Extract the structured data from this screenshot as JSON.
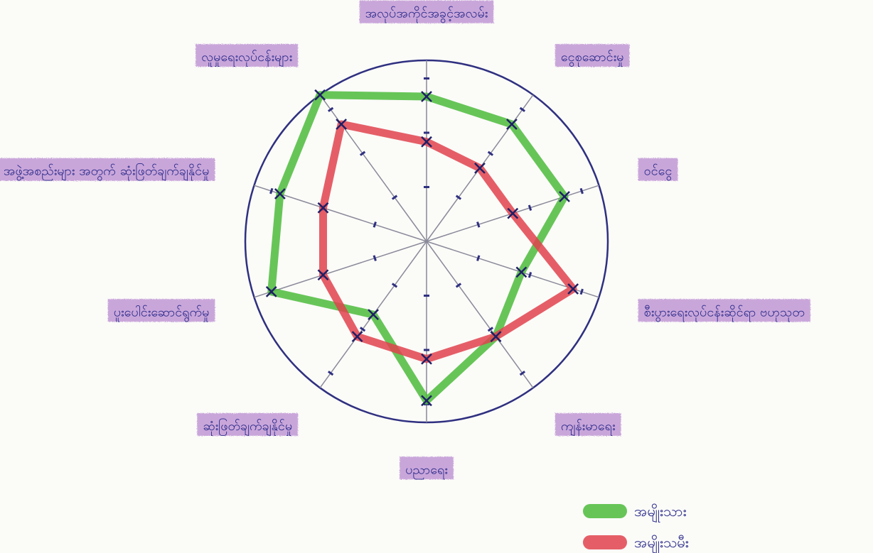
{
  "chart_data": {
    "type": "radar",
    "title": "",
    "axes": [
      "အလုပ်အကိုင်အခွင့်အလမ်း",
      "ငွေစုဆောင်းမှု",
      "ဝင်ငွေ",
      "စီးပွားရေးလုပ်ငန်းဆိုင်ရာ ဗဟုသုတ",
      "ကျန်းမာရေး",
      "ပညာရေး",
      "ဆုံးဖြတ်ချက်ချနိုင်မှု",
      "ပူးပေါင်းဆောင်ရွက်မှု",
      "အဖွဲ့အစည်းများ အတွက် ဆုံးဖြတ်ချက်ချနိုင်မှု",
      "လူမှုရေးလုပ်ငန်းများ"
    ],
    "scale_max": 10,
    "series": [
      {
        "name": "အမျိုးသား",
        "color": "#4cbb3c",
        "values": [
          8,
          8,
          8,
          5.5,
          6.5,
          8.8,
          5,
          9,
          8.5,
          10
        ]
      },
      {
        "name": "အမျိုးသမီး",
        "color": "#e0424e",
        "values": [
          5.5,
          5,
          5,
          8.5,
          6.5,
          6.5,
          6.5,
          6,
          6,
          8
        ]
      }
    ],
    "grid": true,
    "legend_position": "bottom-right"
  },
  "colors": {
    "label_background": "#b98ad1",
    "axis_line": "#2f3080",
    "mark": "#1f1f66"
  }
}
